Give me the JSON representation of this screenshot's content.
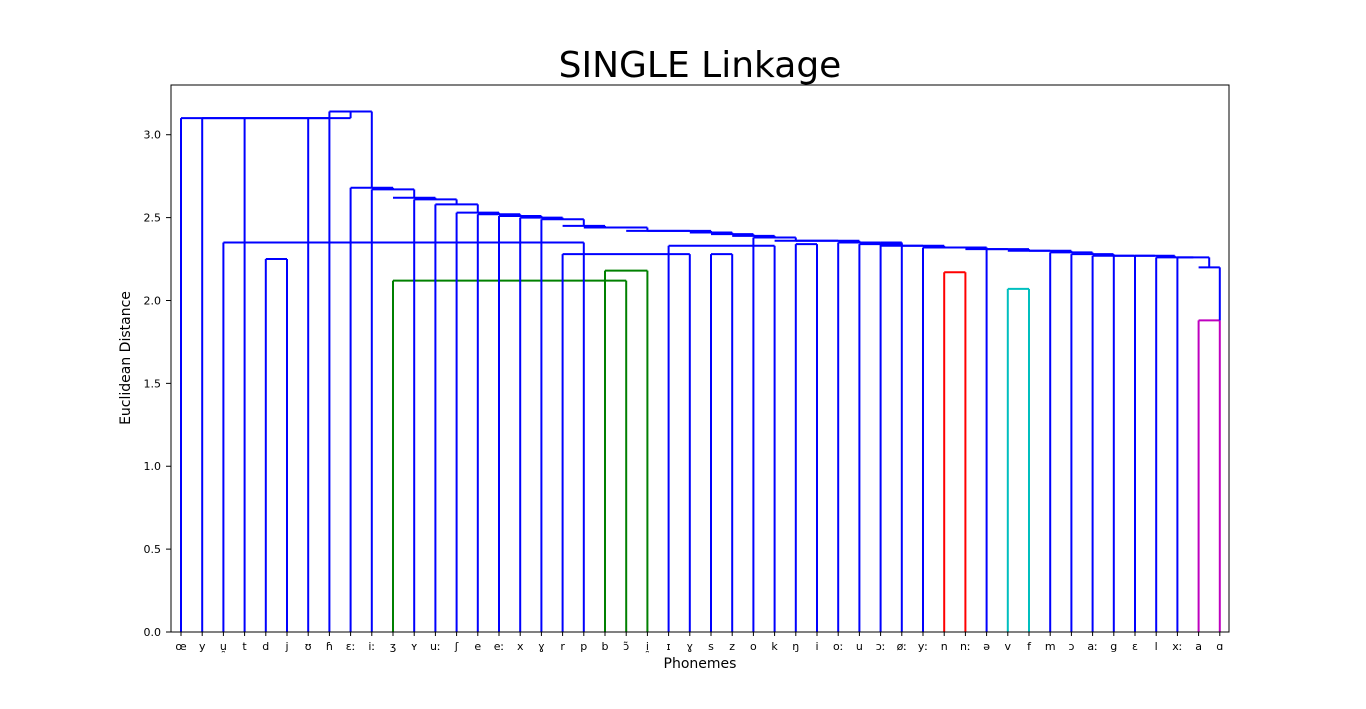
{
  "chart_data": {
    "type": "dendrogram",
    "title": "SINGLE Linkage",
    "xlabel": "Phonemes",
    "ylabel": "Euclidean Distance",
    "ylim": [
      0,
      3.3
    ],
    "yticks": [
      0.0,
      0.5,
      1.0,
      1.5,
      2.0,
      2.5,
      3.0
    ],
    "ytick_labels": [
      "0.0",
      "0.5",
      "1.0",
      "1.5",
      "2.0",
      "2.5",
      "3.0"
    ],
    "leaves": [
      "œ",
      "y",
      "u̯",
      "t",
      "d",
      "j",
      "ʊ",
      "ɦ",
      "ɛː",
      "iː",
      "ʒ",
      "ʏ",
      "uː",
      "ʃ",
      "e",
      "eː",
      "x",
      "ɣ",
      "r",
      "p",
      "b",
      "ɔ̃",
      "i̯",
      "ɪ",
      "ɣ",
      "s",
      "z",
      "o",
      "k",
      "ŋ",
      "i",
      "oː",
      "u",
      "ɔː",
      "øː",
      "yː",
      "n",
      "nː",
      "ə",
      "v",
      "f",
      "m",
      "ɔ",
      "aː",
      "g",
      "ɛ",
      "l",
      "xː",
      "a",
      "ɑ"
    ],
    "merges": [
      {
        "left": 10,
        "right": 21,
        "height": 2.12,
        "color": "#008000"
      },
      {
        "left": 20,
        "right": 22,
        "height": 2.18,
        "color": "#008000"
      },
      {
        "left": 4,
        "right": 5,
        "height": 2.25,
        "color": "#0000ff"
      },
      {
        "left": 28,
        "right": 23,
        "height": 2.33,
        "color": "#0000ff"
      },
      {
        "left": 18,
        "right": 24,
        "height": 2.28,
        "color": "#0000ff"
      },
      {
        "left": 2,
        "right": 19,
        "height": 2.35,
        "color": "#0000ff"
      },
      {
        "left": 25,
        "right": 26,
        "height": 2.28,
        "color": "#0000ff"
      },
      {
        "left": 29,
        "right": 30,
        "height": 2.34,
        "color": "#0000ff"
      },
      {
        "left": 33,
        "right": 34,
        "height": 2.35,
        "color": "#0000ff"
      },
      {
        "left": 36,
        "right": 37,
        "height": 2.17,
        "color": "#ff0000"
      },
      {
        "left": 39,
        "right": 40,
        "height": 2.07,
        "color": "#00bfbf"
      },
      {
        "left": 48,
        "right": 49,
        "height": 1.88,
        "color": "#bf00bf"
      }
    ],
    "link_colors": [
      "#0000ff",
      "#008000",
      "#ff0000",
      "#00bfbf",
      "#bf00bf"
    ],
    "grid": false
  }
}
